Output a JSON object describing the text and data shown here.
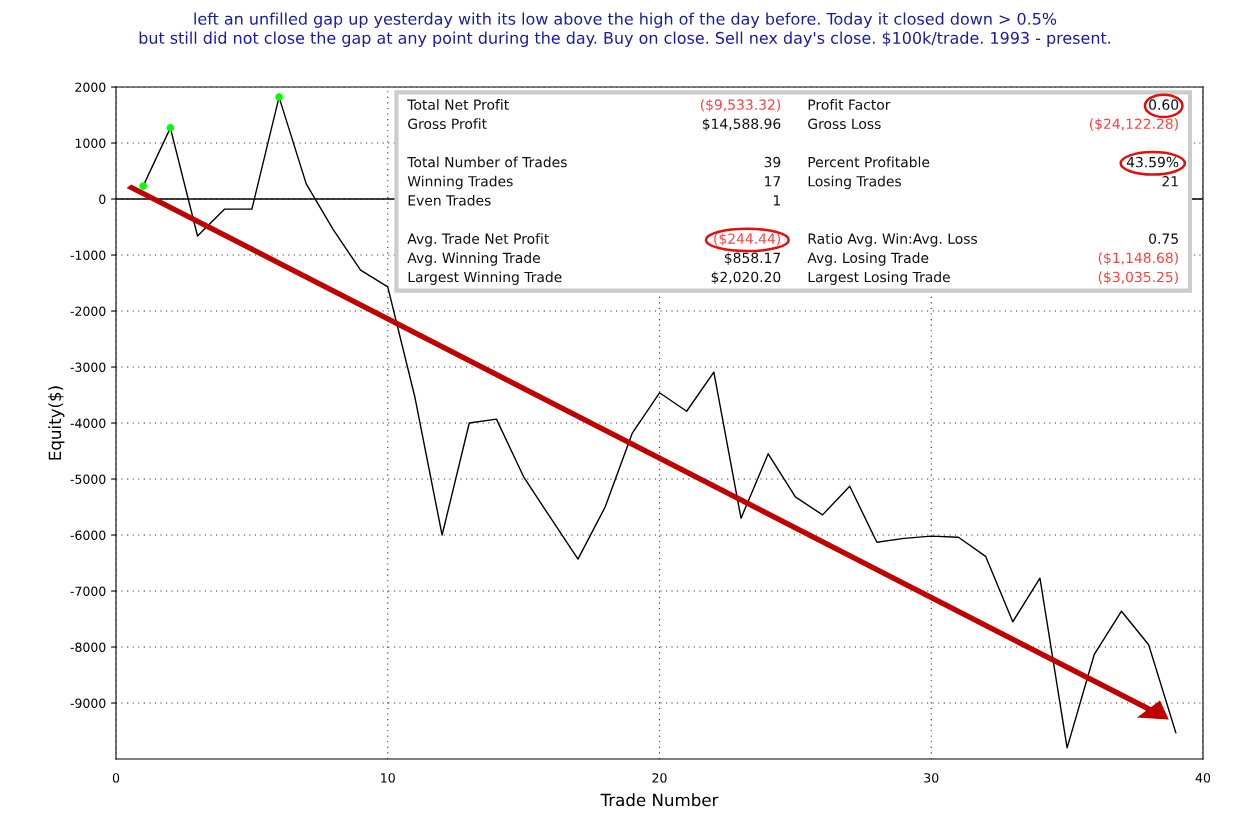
{
  "chart_data": {
    "type": "line",
    "title": "left an unfilled gap up yesterday with its low above the high of the day before. Today it closed down > 0.5%\nbut still did not close the gap at any point during the day. Buy on close. Sell nex day's close. $100k/trade. 1993 - present.",
    "xlabel": "Trade Number",
    "ylabel": "Equity($)",
    "series": [
      {
        "color": "#000000",
        "marker": "none",
        "x": [
          1,
          2,
          3,
          4,
          5,
          6,
          7,
          8,
          9,
          10,
          11,
          12,
          13,
          14,
          15,
          16,
          17,
          18,
          19,
          20,
          21,
          22,
          23,
          24,
          25,
          26,
          27,
          28,
          29,
          30,
          31,
          32,
          33,
          34,
          35,
          36,
          37,
          38,
          39
        ],
        "values": [
          230,
          1270,
          -660,
          -180,
          -180,
          1820,
          270,
          -550,
          -1270,
          -1570,
          -3540,
          -6000,
          -4000,
          -3930,
          -4960,
          -5700,
          -6430,
          -5500,
          -4180,
          -3460,
          -3790,
          -3090,
          -5700,
          -4550,
          -5320,
          -5640,
          -5130,
          -6130,
          -6060,
          -6020,
          -6040,
          -6380,
          -7550,
          -6770,
          -9800,
          -8130,
          -7360,
          -7960,
          -9530
        ]
      },
      {
        "type": "scatter",
        "color": "#00ff00",
        "marker": "circle",
        "x": [
          1,
          2,
          6
        ],
        "values": [
          230,
          1270,
          1820
        ]
      }
    ],
    "xlim": [
      0,
      40
    ],
    "xticks": [
      0,
      10,
      20,
      30,
      40
    ],
    "ylim": [
      -10000,
      2000
    ],
    "yticks": [
      -9000,
      -8000,
      -7000,
      -6000,
      -5000,
      -4000,
      -3000,
      -2000,
      -1000,
      0,
      1000,
      2000
    ],
    "grid": true,
    "ref_lines": [
      {
        "axis": "y",
        "value": 0,
        "color": "#000000",
        "line_style": "solid"
      }
    ],
    "annotations": [
      "Total Net Profit",
      "($9,533.32)",
      "Profit Factor",
      "0.60",
      "Gross Profit",
      "$14,588.96",
      "Gross Loss",
      "($24,122.28)",
      "Total Number of Trades",
      "39",
      "Percent Profitable",
      "43.59%",
      "Winning Trades",
      "17",
      "Losing Trades",
      "21",
      "Even Trades",
      "1",
      "Avg. Trade Net Profit",
      "($244.44)",
      "Ratio Avg. Win:Avg. Loss",
      "0.75",
      "Avg. Winning Trade",
      "$858.17",
      "Avg. Losing Trade",
      "($1,148.68)",
      "Largest Winning Trade",
      "$2,020.20",
      "Largest Losing Trade",
      "($3,035.25)"
    ]
  }
}
